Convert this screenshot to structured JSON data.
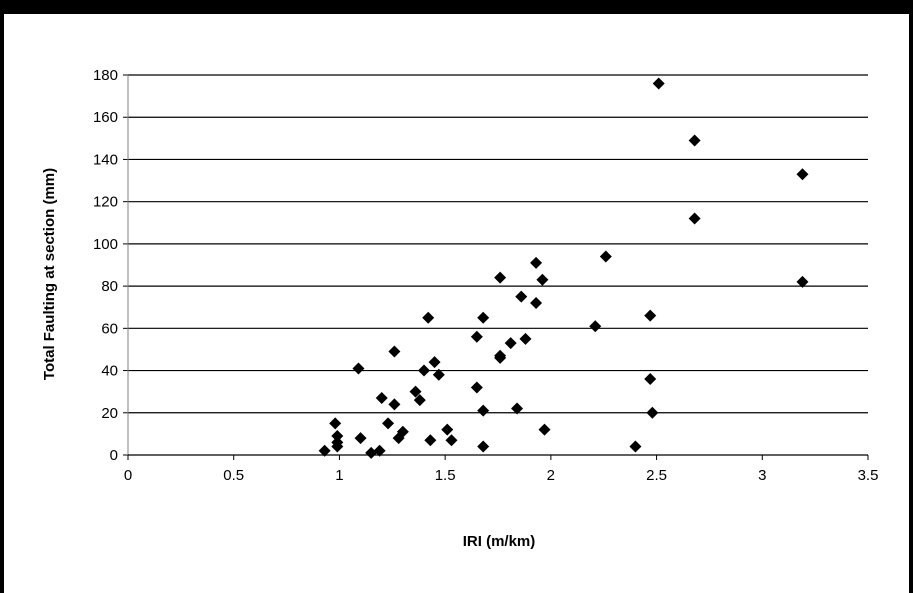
{
  "chart_data": {
    "type": "scatter",
    "title": "",
    "xlabel": "IRI (m/km)",
    "ylabel": "Total Faulting at section (mm)",
    "xlim": [
      0,
      3.5
    ],
    "ylim": [
      0,
      180
    ],
    "x_ticks": [
      0,
      0.5,
      1,
      1.5,
      2,
      2.5,
      3,
      3.5
    ],
    "y_ticks": [
      0,
      20,
      40,
      60,
      80,
      100,
      120,
      140,
      160,
      180
    ],
    "grid": "horizontal",
    "legend": "none",
    "marker": "diamond",
    "marker_color": "#000000",
    "series": [
      {
        "x": [
          0.93,
          0.98,
          0.99,
          0.99,
          0.99,
          1.09,
          1.1,
          1.15,
          1.19,
          1.2,
          1.23,
          1.26,
          1.26,
          1.28,
          1.3,
          1.36,
          1.38,
          1.4,
          1.42,
          1.43,
          1.45,
          1.47,
          1.51,
          1.53,
          1.65,
          1.65,
          1.68,
          1.68,
          1.68,
          1.76,
          1.76,
          1.76,
          1.81,
          1.84,
          1.86,
          1.88,
          1.93,
          1.93,
          1.96,
          1.97,
          2.21,
          2.26,
          2.4,
          2.47,
          2.47,
          2.48,
          2.51,
          2.68,
          2.68,
          3.19,
          3.19
        ],
        "y": [
          2,
          15,
          9,
          6,
          4,
          41,
          8,
          1,
          2,
          27,
          15,
          49,
          24,
          8,
          11,
          30,
          26,
          40,
          65,
          7,
          44,
          38,
          12,
          7,
          56,
          32,
          65,
          21,
          4,
          84,
          47,
          46,
          53,
          22,
          75,
          55,
          91,
          72,
          83,
          12,
          61,
          94,
          4,
          66,
          36,
          20,
          176,
          149,
          112,
          133,
          82
        ]
      }
    ]
  }
}
